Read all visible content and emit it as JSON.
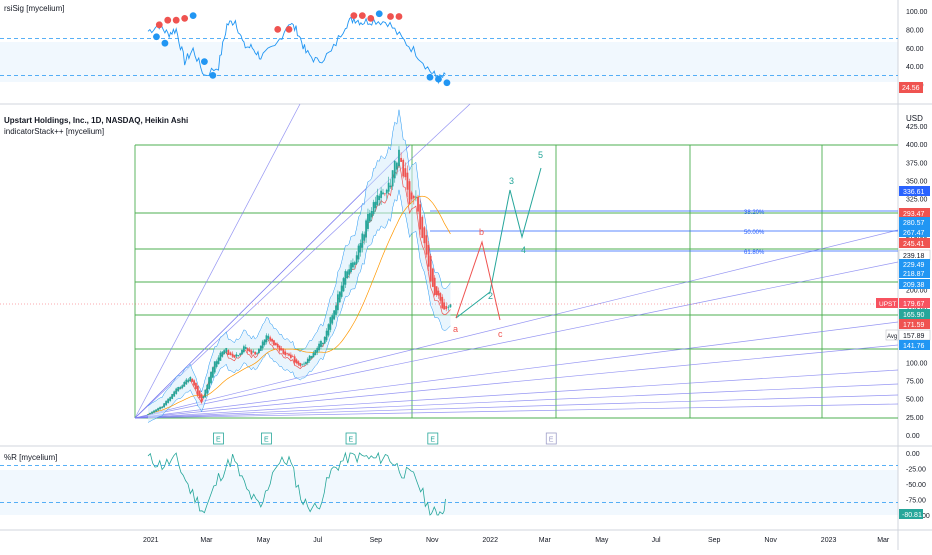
{
  "colors": {
    "up": "#26a69a",
    "down": "#ef5350",
    "grid_green": "#4caf50",
    "fib_blue": "#2962ff",
    "fan": "#7b7bf0",
    "band": "#2196f3",
    "axis_text": "#131722",
    "price_line": "#f7525f"
  },
  "rsi_pane": {
    "title": "rsiSig [mycelium]",
    "ticks": [
      "100.00",
      "80.00",
      "60.00",
      "40.00",
      "20.00"
    ],
    "last_value": "24.56"
  },
  "price_pane": {
    "title": "Upstart Holdings, Inc., 1D, NASDAQ, Heikin Ashi",
    "subtitle": "indicatorStack++ [mycelium]",
    "currency": "USD",
    "ticks": [
      "425.00",
      "400.00",
      "375.00",
      "350.00",
      "325.00",
      "300.00",
      "275.00",
      "250.00",
      "225.00",
      "200.00",
      "175.00",
      "150.00",
      "125.00",
      "100.00",
      "75.00",
      "50.00",
      "25.00",
      "0.00"
    ],
    "fib_levels": [
      "38.20%",
      "50.00%",
      "61.80%"
    ],
    "wave_labels": [
      "5",
      "3",
      "4",
      "b",
      "2",
      "a",
      "c"
    ],
    "earnings_marker": "E",
    "symbol_tag": "UPST",
    "avg_label": "Avg",
    "price_tags": [
      {
        "text": "336.61",
        "color": "#2962ff"
      },
      {
        "text": "293.47",
        "color": "#ef5350"
      },
      {
        "text": "280.57",
        "color": "#2196f3"
      },
      {
        "text": "267.47",
        "color": "#2196f3"
      },
      {
        "text": "245.41",
        "color": "#ef5350"
      },
      {
        "text": "239.18",
        "color": "#ffffff"
      },
      {
        "text": "229.49",
        "color": "#2196f3"
      },
      {
        "text": "218.87",
        "color": "#2196f3"
      },
      {
        "text": "209.38",
        "color": "#2196f3"
      },
      {
        "text": "179.67",
        "color": "#f7525f"
      },
      {
        "text": "165.90",
        "color": "#26a69a"
      },
      {
        "text": "171.59",
        "color": "#ef5350"
      },
      {
        "text": "157.89",
        "color": "#ffffff"
      },
      {
        "text": "141.76",
        "color": "#2196f3"
      }
    ]
  },
  "wr_pane": {
    "title": "%R [mycelium]",
    "ticks": [
      "0.00",
      "-25.00",
      "-50.00",
      "-75.00",
      "-100.00"
    ],
    "last_value": "-80.81"
  },
  "time_axis": [
    "2021",
    "Mar",
    "May",
    "Jul",
    "Sep",
    "Nov",
    "2022",
    "Mar",
    "May",
    "Jul",
    "Sep",
    "Nov",
    "2023",
    "Mar"
  ],
  "chart_data": [
    {
      "type": "line",
      "title": "rsiSig [mycelium]",
      "ylim": [
        20,
        100
      ],
      "x": [
        "2021-01",
        "2021-02",
        "2021-03",
        "2021-04",
        "2021-05",
        "2021-06",
        "2021-07",
        "2021-08",
        "2021-09",
        "2021-10",
        "2021-11",
        "2021-12"
      ],
      "series": [
        {
          "values": [
            80,
            82,
            40,
            88,
            62,
            80,
            62,
            80,
            90,
            85,
            35,
            24.56
          ]
        }
      ]
    },
    {
      "type": "line",
      "title": "Upstart Holdings, Inc., 1D, NASDAQ, Heikin Ashi",
      "ylabel": "USD",
      "ylim": [
        0,
        425
      ],
      "x": [
        "2021-01",
        "2021-02",
        "2021-03",
        "2021-04",
        "2021-05",
        "2021-06",
        "2021-07",
        "2021-08",
        "2021-09",
        "2021-10",
        "2021-11",
        "2021-12"
      ],
      "series": [
        {
          "values": [
            28,
            60,
            80,
            120,
            140,
            110,
            125,
            210,
            300,
            390,
            290,
            179.67
          ]
        }
      ],
      "fib_levels": [
        {
          "label": "38.20%",
          "value": 293
        },
        {
          "label": "50.00%",
          "value": 267
        },
        {
          "label": "61.80%",
          "value": 239
        }
      ]
    },
    {
      "type": "line",
      "title": "%R [mycelium]",
      "ylim": [
        -100,
        0
      ],
      "x": [
        "2021-01",
        "2021-02",
        "2021-03",
        "2021-04",
        "2021-05",
        "2021-06",
        "2021-07",
        "2021-08",
        "2021-09",
        "2021-10",
        "2021-11",
        "2021-12"
      ],
      "series": [
        {
          "values": [
            -10,
            -15,
            -90,
            -10,
            -85,
            -15,
            -80,
            -10,
            -5,
            -20,
            -95,
            -80.81
          ]
        }
      ]
    }
  ]
}
